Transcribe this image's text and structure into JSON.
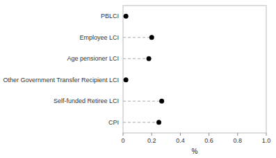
{
  "chart_data": {
    "type": "dot",
    "orientation": "horizontal",
    "categories": [
      "CPI",
      "Self-funded Retiree LCI",
      "Other Government Transfer Recipient LCI",
      "Age pensioner LCI",
      "Employee LCI",
      "PBLCI"
    ],
    "values": [
      0.25,
      0.27,
      0.02,
      0.18,
      0.2,
      0.02
    ],
    "color": "#000000",
    "line_style": "dashed",
    "xlabel": "%",
    "xlim": [
      0,
      1.0
    ],
    "xticks": [
      0,
      0.2,
      0.4,
      0.6,
      0.8,
      {
        "value": 1.0,
        "label": "1.0"
      }
    ],
    "grid": false
  }
}
